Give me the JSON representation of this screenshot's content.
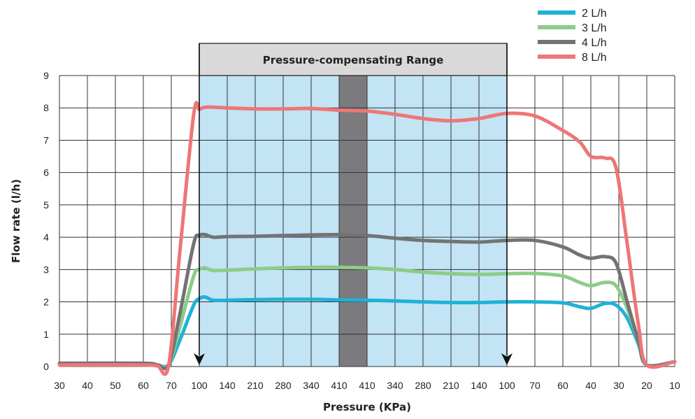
{
  "chart_data": {
    "type": "line",
    "xlabel": "Pressure (KPa)",
    "ylabel": "Flow rate (l/h)",
    "ylim": [
      0,
      9
    ],
    "yticks": [
      0,
      1,
      2,
      3,
      4,
      5,
      6,
      7,
      8,
      9
    ],
    "categories": [
      "30",
      "40",
      "50",
      "60",
      "70",
      "100",
      "140",
      "210",
      "280",
      "340",
      "410",
      "410",
      "340",
      "280",
      "210",
      "140",
      "100",
      "70",
      "60",
      "40",
      "30",
      "20",
      "10"
    ],
    "band_label": "Pressure-compensating Range",
    "grid": true,
    "legend_position": "top-right",
    "colors": {
      "range_fill": "#c2e4f5",
      "range_header": "#d9d9d9",
      "center_bar": "#7b7b7d",
      "grid": "#333333"
    },
    "series": [
      {
        "name": "2 L/h",
        "color": "#1fb2d8",
        "points": [
          [
            0,
            0.1
          ],
          [
            3,
            0.1
          ],
          [
            3.5,
            0.05
          ],
          [
            3.9,
            0.05
          ],
          [
            4.3,
            0.8
          ],
          [
            4.8,
            1.9
          ],
          [
            5.0,
            2.1
          ],
          [
            5.2,
            2.15
          ],
          [
            5.5,
            2.05
          ],
          [
            6,
            2.05
          ],
          [
            7,
            2.07
          ],
          [
            8,
            2.08
          ],
          [
            9,
            2.08
          ],
          [
            10,
            2.06
          ],
          [
            11,
            2.05
          ],
          [
            12,
            2.03
          ],
          [
            13,
            2.0
          ],
          [
            14,
            1.98
          ],
          [
            15,
            1.98
          ],
          [
            16,
            2.0
          ],
          [
            17,
            2.0
          ],
          [
            18,
            1.97
          ],
          [
            18.6,
            1.85
          ],
          [
            19.0,
            1.8
          ],
          [
            19.5,
            1.95
          ],
          [
            19.9,
            1.9
          ],
          [
            20.3,
            1.5
          ],
          [
            20.7,
            0.7
          ],
          [
            21.0,
            0.05
          ],
          [
            22,
            0.15
          ]
        ]
      },
      {
        "name": "3 L/h",
        "color": "#8ccc88",
        "points": [
          [
            0,
            0.1
          ],
          [
            3,
            0.1
          ],
          [
            3.5,
            0.05
          ],
          [
            3.9,
            0.05
          ],
          [
            4.3,
            1.2
          ],
          [
            4.8,
            2.8
          ],
          [
            5.0,
            3.0
          ],
          [
            5.2,
            3.05
          ],
          [
            5.5,
            2.97
          ],
          [
            6,
            2.98
          ],
          [
            7,
            3.02
          ],
          [
            8,
            3.05
          ],
          [
            9,
            3.07
          ],
          [
            10,
            3.07
          ],
          [
            11,
            3.05
          ],
          [
            12,
            3.0
          ],
          [
            13,
            2.92
          ],
          [
            14,
            2.87
          ],
          [
            15,
            2.85
          ],
          [
            16,
            2.87
          ],
          [
            17,
            2.88
          ],
          [
            18,
            2.8
          ],
          [
            18.6,
            2.6
          ],
          [
            19.0,
            2.5
          ],
          [
            19.5,
            2.6
          ],
          [
            19.9,
            2.5
          ],
          [
            20.3,
            1.8
          ],
          [
            20.7,
            0.8
          ],
          [
            21.0,
            0.05
          ],
          [
            22,
            0.15
          ]
        ]
      },
      {
        "name": "4 L/h",
        "color": "#737375",
        "points": [
          [
            0,
            0.1
          ],
          [
            3,
            0.1
          ],
          [
            3.5,
            0.05
          ],
          [
            3.9,
            0.05
          ],
          [
            4.3,
            1.6
          ],
          [
            4.8,
            3.8
          ],
          [
            5.0,
            4.05
          ],
          [
            5.2,
            4.08
          ],
          [
            5.5,
            4.0
          ],
          [
            6,
            4.02
          ],
          [
            7,
            4.03
          ],
          [
            8,
            4.05
          ],
          [
            9,
            4.07
          ],
          [
            10,
            4.08
          ],
          [
            11,
            4.05
          ],
          [
            12,
            3.97
          ],
          [
            13,
            3.9
          ],
          [
            14,
            3.87
          ],
          [
            15,
            3.85
          ],
          [
            16,
            3.9
          ],
          [
            17,
            3.9
          ],
          [
            18,
            3.7
          ],
          [
            18.6,
            3.45
          ],
          [
            19.0,
            3.35
          ],
          [
            19.5,
            3.4
          ],
          [
            19.9,
            3.2
          ],
          [
            20.3,
            2.0
          ],
          [
            20.7,
            0.8
          ],
          [
            21.0,
            0.05
          ],
          [
            22,
            0.15
          ]
        ]
      },
      {
        "name": "8 L/h",
        "color": "#ee7676",
        "points": [
          [
            0,
            0.05
          ],
          [
            3,
            0.05
          ],
          [
            3.5,
            0.02
          ],
          [
            3.9,
            0.02
          ],
          [
            4.3,
            3.5
          ],
          [
            4.8,
            7.8
          ],
          [
            5.0,
            7.95
          ],
          [
            5.2,
            8.02
          ],
          [
            5.5,
            8.02
          ],
          [
            6,
            8.0
          ],
          [
            7,
            7.97
          ],
          [
            8,
            7.97
          ],
          [
            9,
            7.98
          ],
          [
            10,
            7.93
          ],
          [
            11,
            7.9
          ],
          [
            12,
            7.8
          ],
          [
            13,
            7.67
          ],
          [
            14,
            7.6
          ],
          [
            15,
            7.67
          ],
          [
            16,
            7.83
          ],
          [
            17,
            7.75
          ],
          [
            18,
            7.3
          ],
          [
            18.6,
            6.95
          ],
          [
            19.0,
            6.5
          ],
          [
            19.5,
            6.45
          ],
          [
            19.9,
            6.15
          ],
          [
            20.3,
            3.8
          ],
          [
            20.7,
            1.3
          ],
          [
            21.0,
            0.05
          ],
          [
            22,
            0.15
          ]
        ]
      }
    ]
  }
}
